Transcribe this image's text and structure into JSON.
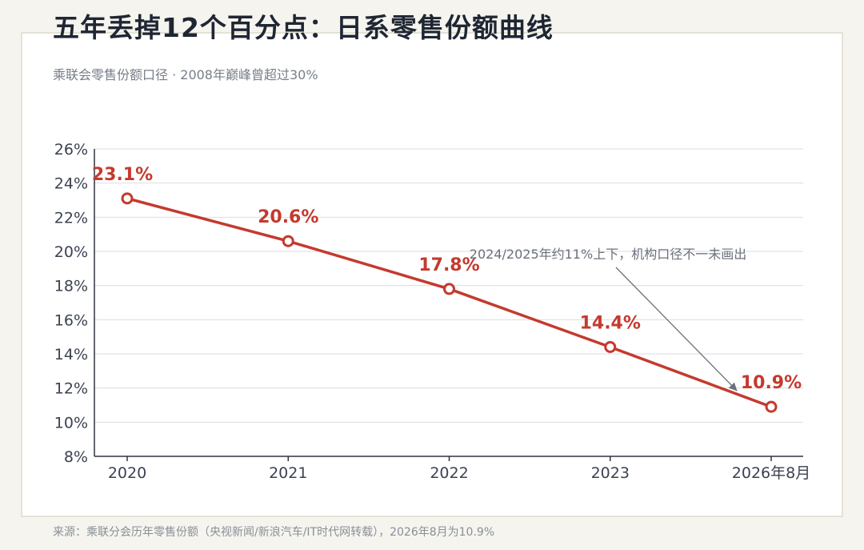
{
  "header": {
    "title": "五年丢掉12个百分点：日系零售份额曲线",
    "subtitle": "乘联会零售份额口径 · 2008年巅峰曾超过30%"
  },
  "footer": {
    "source": "来源：乘联分会历年零售份额（央视新闻/新浪汽车/IT时代网转载），2026年8月为10.9%"
  },
  "chart_data": {
    "type": "line",
    "categories": [
      "2020",
      "2021",
      "2022",
      "2023",
      "2026年8月"
    ],
    "values": [
      23.1,
      20.6,
      17.8,
      14.4,
      10.9
    ],
    "value_labels": [
      "23.1%",
      "20.6%",
      "17.8%",
      "14.4%",
      "10.9%"
    ],
    "ylim": [
      8,
      26
    ],
    "yticks": [
      8,
      10,
      12,
      14,
      16,
      18,
      20,
      22,
      24,
      26
    ],
    "ytick_labels": [
      "8%",
      "10%",
      "12%",
      "14%",
      "16%",
      "18%",
      "20%",
      "22%",
      "24%",
      "26%"
    ],
    "grid": true,
    "annotation": {
      "text": "2024/2025年约11%上下，机构口径不一未画出",
      "target_between": [
        "2023",
        "2026年8月"
      ]
    },
    "colors": {
      "line": "#c43a2e",
      "grid": "#dcdde3",
      "axis": "#2f3440"
    }
  }
}
